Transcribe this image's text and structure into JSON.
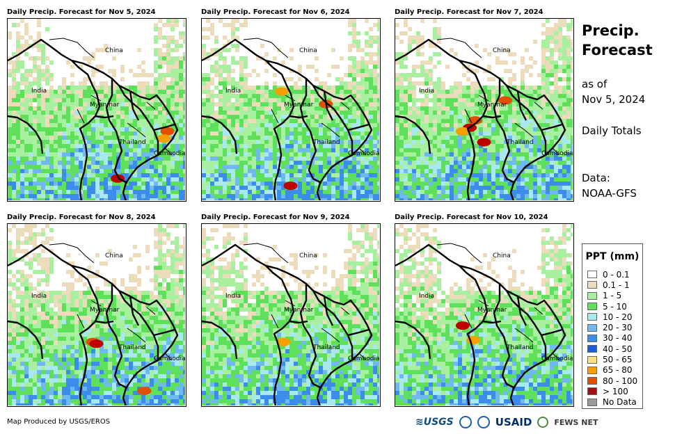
{
  "panels": [
    {
      "title": "Daily Precip. Forecast for Nov 5, 2024",
      "heavy": [
        [
          0.62,
          0.88,
          "#c00000"
        ],
        [
          0.9,
          0.62,
          "#e05000"
        ],
        [
          0.88,
          0.66,
          "#f5a000"
        ]
      ]
    },
    {
      "title": "Daily Precip. Forecast for Nov 6, 2024",
      "heavy": [
        [
          0.5,
          0.92,
          "#c00000"
        ],
        [
          0.45,
          0.4,
          "#f5a000"
        ],
        [
          0.7,
          0.47,
          "#e05000"
        ]
      ]
    },
    {
      "title": "Daily Precip. Forecast for Nov 7, 2024",
      "heavy": [
        [
          0.5,
          0.68,
          "#c00000"
        ],
        [
          0.42,
          0.6,
          "#c00000"
        ],
        [
          0.62,
          0.45,
          "#e05000"
        ],
        [
          0.38,
          0.62,
          "#f5a000"
        ],
        [
          0.45,
          0.56,
          "#e05000"
        ]
      ]
    },
    {
      "title": "Daily Precip. Forecast for Nov 8, 2024",
      "heavy": [
        [
          0.48,
          0.65,
          "#e05000"
        ],
        [
          0.77,
          0.92,
          "#e05000"
        ],
        [
          0.5,
          0.66,
          "#c00000"
        ]
      ]
    },
    {
      "title": "Daily Precip. Forecast for Nov 9, 2024",
      "heavy": [
        [
          0.46,
          0.65,
          "#f5a000"
        ]
      ]
    },
    {
      "title": "Daily Precip. Forecast for Nov 10, 2024",
      "heavy": [
        [
          0.38,
          0.56,
          "#c00000"
        ],
        [
          0.44,
          0.64,
          "#f5a000"
        ]
      ]
    }
  ],
  "map_labels": {
    "china": "China",
    "india": "India",
    "myanmar": "Myanmar",
    "thailand": "Thailand",
    "cambodia": "Cambodia"
  },
  "sidebar": {
    "title_line1": "Precip.",
    "title_line2": "Forecast",
    "asof_line1": "as of",
    "asof_line2": "Nov 5, 2024",
    "totals": "Daily Totals",
    "data_line1": "Data:",
    "data_line2": "NOAA-GFS"
  },
  "legend": {
    "title": "PPT (mm)",
    "items": [
      {
        "label": "0 - 0.1",
        "color": "#ffffff"
      },
      {
        "label": "0.1 - 1",
        "color": "#ecdcbc"
      },
      {
        "label": "1 - 5",
        "color": "#a8f0a0"
      },
      {
        "label": "5 - 10",
        "color": "#5ee05a"
      },
      {
        "label": "10 - 20",
        "color": "#a8e8f0"
      },
      {
        "label": "20 - 30",
        "color": "#70b8f0"
      },
      {
        "label": "30 - 40",
        "color": "#3c8cec"
      },
      {
        "label": "40 - 50",
        "color": "#1c5cdc"
      },
      {
        "label": "50 - 65",
        "color": "#fce080"
      },
      {
        "label": "65 - 80",
        "color": "#f5a000"
      },
      {
        "label": "80 - 100",
        "color": "#e05000"
      },
      {
        "label": "> 100",
        "color": "#a01010"
      },
      {
        "label": "No Data",
        "color": "#999999"
      }
    ]
  },
  "footer": {
    "credit": "Map Produced by USGS/EROS",
    "logo_usgs": "≋USGS",
    "logo_usaid": "USAID",
    "logo_fews": "FEWS NET"
  }
}
